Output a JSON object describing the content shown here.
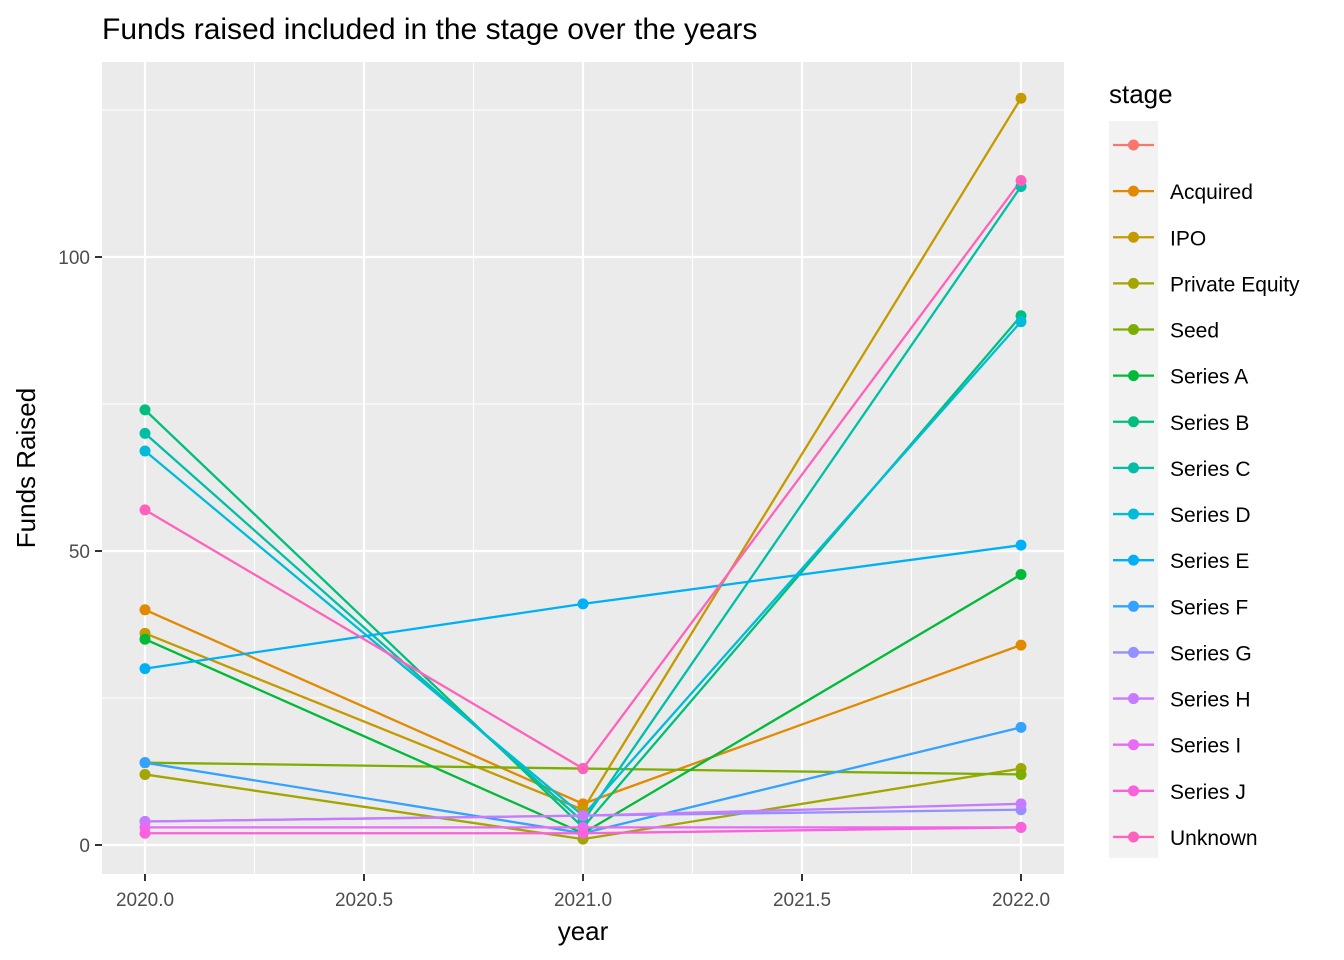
{
  "chart_data": {
    "type": "line",
    "title": "Funds raised included in the stage over the years",
    "xlabel": "year",
    "ylabel": "Funds Raised",
    "x": [
      2020,
      2021,
      2022
    ],
    "xlim": [
      1999.9,
      2022.1
    ],
    "ylim": [
      -5,
      127.5
    ],
    "x_ticks": [
      {
        "value": 2020.0,
        "label": "2020.0"
      },
      {
        "value": 2020.5,
        "label": "2020.5"
      },
      {
        "value": 2021.0,
        "label": "2021.0"
      },
      {
        "value": 2021.5,
        "label": "2021.5"
      },
      {
        "value": 2022.0,
        "label": "2022.0"
      }
    ],
    "x_minor_ticks": [
      2020.25,
      2020.75,
      2021.25,
      2021.75
    ],
    "y_ticks": [
      {
        "value": 0,
        "label": "0"
      },
      {
        "value": 50,
        "label": "50"
      },
      {
        "value": 100,
        "label": "100"
      }
    ],
    "y_minor_ticks": [
      25,
      75,
      125
    ],
    "grid": true,
    "legend": {
      "title": "stage",
      "position": "right"
    },
    "series": [
      {
        "name": "",
        "color": "#F8766D",
        "points": []
      },
      {
        "name": "Acquired",
        "color": "#E38900",
        "points": [
          [
            2020,
            40
          ],
          [
            2021,
            7
          ],
          [
            2022,
            34
          ]
        ]
      },
      {
        "name": "IPO",
        "color": "#C49A00",
        "points": [
          [
            2020,
            36
          ],
          [
            2021,
            6
          ],
          [
            2022,
            127
          ]
        ]
      },
      {
        "name": "Private Equity",
        "color": "#A3A500",
        "points": [
          [
            2020,
            12
          ],
          [
            2021,
            1
          ],
          [
            2022,
            13
          ]
        ]
      },
      {
        "name": "Seed",
        "color": "#7CAE00",
        "points": [
          [
            2020,
            14
          ],
          [
            2021,
            13
          ],
          [
            2022,
            12
          ]
        ]
      },
      {
        "name": "Series A",
        "color": "#00BA38",
        "points": [
          [
            2020,
            35
          ],
          [
            2021,
            2
          ],
          [
            2022,
            46
          ]
        ]
      },
      {
        "name": "Series B",
        "color": "#00BF7D",
        "points": [
          [
            2020,
            74
          ],
          [
            2021,
            3
          ],
          [
            2022,
            90
          ]
        ]
      },
      {
        "name": "Series C",
        "color": "#00BFA5",
        "points": [
          [
            2020,
            70
          ],
          [
            2021,
            4
          ],
          [
            2022,
            112
          ]
        ]
      },
      {
        "name": "Series D",
        "color": "#00BCD8",
        "points": [
          [
            2020,
            67
          ],
          [
            2021,
            5
          ],
          [
            2022,
            89
          ]
        ]
      },
      {
        "name": "Series E",
        "color": "#00B0F6",
        "points": [
          [
            2020,
            30
          ],
          [
            2021,
            41
          ],
          [
            2022,
            51
          ]
        ]
      },
      {
        "name": "Series F",
        "color": "#35A2FF",
        "points": [
          [
            2020,
            14
          ],
          [
            2021,
            2
          ],
          [
            2022,
            20
          ]
        ]
      },
      {
        "name": "Series G",
        "color": "#9590FF",
        "points": [
          [
            2020,
            4
          ],
          [
            2021,
            5
          ],
          [
            2022,
            6
          ]
        ]
      },
      {
        "name": "Series H",
        "color": "#C77CFF",
        "points": [
          [
            2020,
            4
          ],
          [
            2021,
            5
          ],
          [
            2022,
            7
          ]
        ]
      },
      {
        "name": "Series I",
        "color": "#E76BF3",
        "points": [
          [
            2020,
            3
          ],
          [
            2021,
            3
          ],
          [
            2022,
            3
          ]
        ]
      },
      {
        "name": "Series J",
        "color": "#FA62DB",
        "points": [
          [
            2020,
            2
          ],
          [
            2021,
            2
          ],
          [
            2022,
            3
          ]
        ]
      },
      {
        "name": "Unknown",
        "color": "#FF62BC",
        "points": [
          [
            2020,
            57
          ],
          [
            2021,
            13
          ],
          [
            2022,
            113
          ]
        ]
      }
    ]
  }
}
